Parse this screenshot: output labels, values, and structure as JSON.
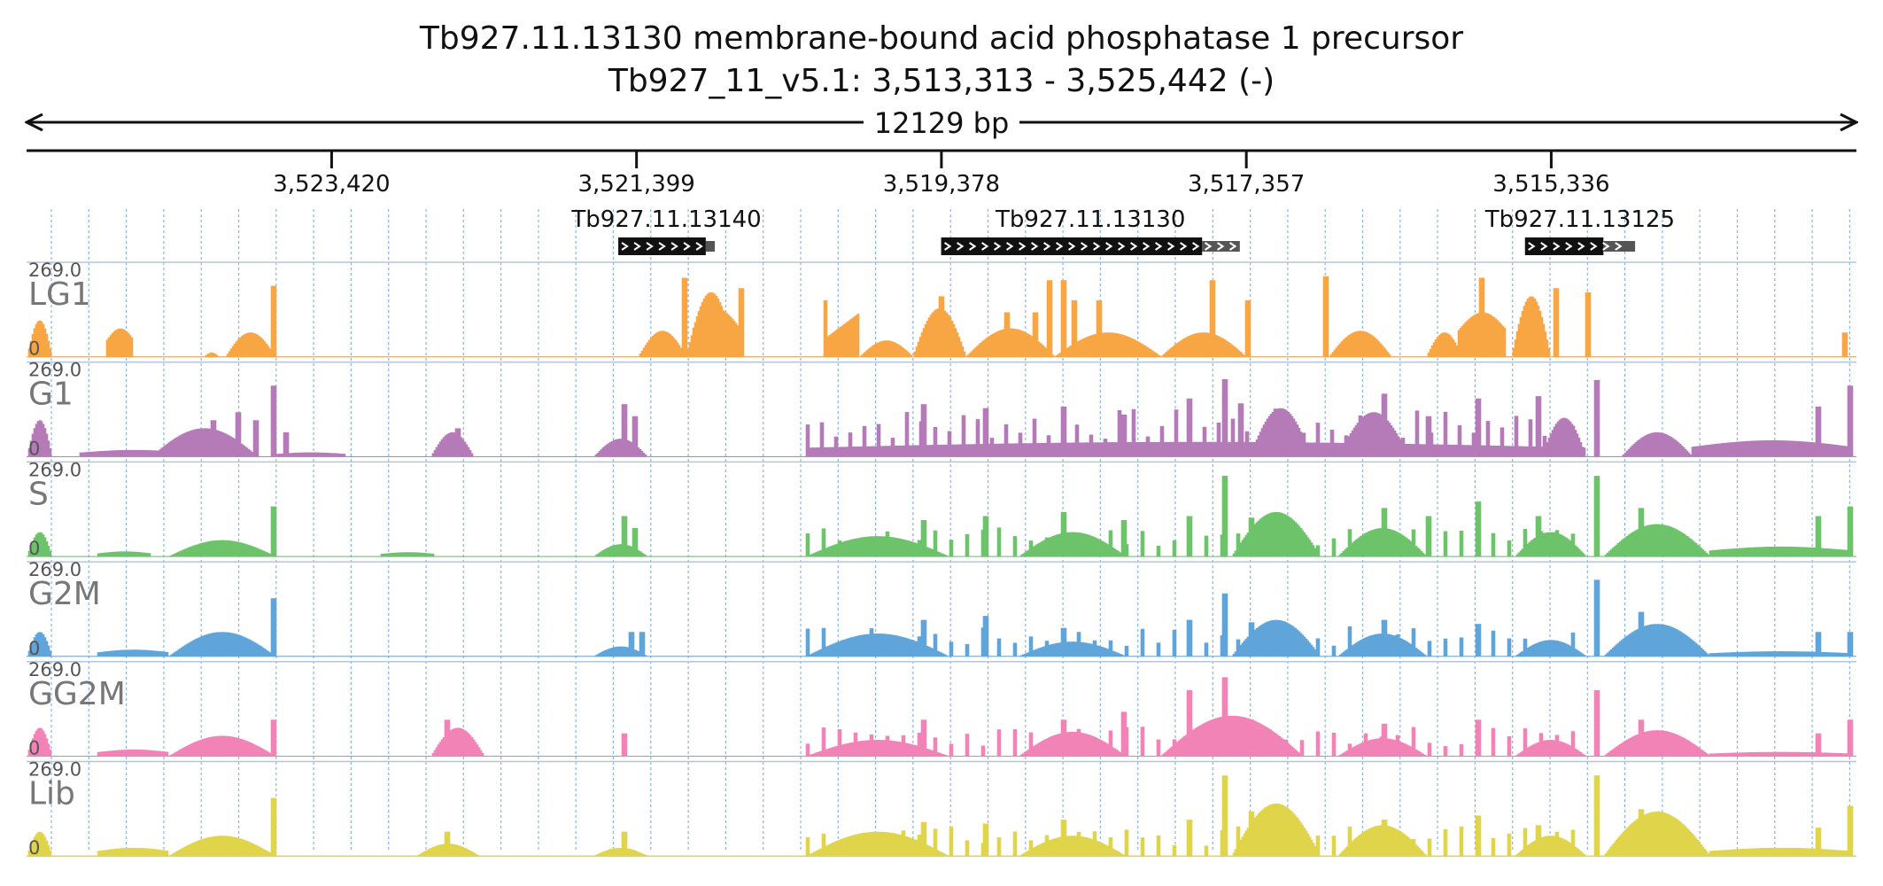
{
  "header": {
    "title": "Tb927.11.13130  membrane-bound acid phosphatase 1 precursor",
    "location": "Tb927_11_v5.1: 3,513,313 - 3,525,442 (-)"
  },
  "span": {
    "label": "12129 bp"
  },
  "ruler": {
    "start": 3525442,
    "end": 3513313,
    "strand": "-",
    "ticks": [
      {
        "value": 3523420,
        "label": "3,523,420"
      },
      {
        "value": 3521399,
        "label": "3,521,399"
      },
      {
        "value": 3519378,
        "label": "3,519,378"
      },
      {
        "value": 3517357,
        "label": "3,517,357"
      },
      {
        "value": 3515336,
        "label": "3,515,336"
      }
    ]
  },
  "genes": [
    {
      "id": "Tb927.11.13140",
      "start": 3520940,
      "end": 3521520,
      "cds_end": 3520880
    },
    {
      "id": "Tb927.11.13130",
      "start": 3517650,
      "end": 3519380,
      "cds_end": 3517400
    },
    {
      "id": "Tb927.11.13125",
      "start": 3514990,
      "end": 3515510,
      "cds_end": 3514780
    }
  ],
  "tracks": [
    {
      "name": "LG1",
      "max": "269.0",
      "zero": "0",
      "color": "#f7a643",
      "profile": "lg1"
    },
    {
      "name": "G1",
      "max": "269.0",
      "zero": "0",
      "color": "#b57ab8",
      "profile": "g1"
    },
    {
      "name": "S",
      "max": "269.0",
      "zero": "0",
      "color": "#6cc36a",
      "profile": "s"
    },
    {
      "name": "G2M",
      "max": "269.0",
      "zero": "0",
      "color": "#5fa5d9",
      "profile": "g2m"
    },
    {
      "name": "GG2M",
      "max": "269.0",
      "zero": "0",
      "color": "#f283b6",
      "profile": "gg2m"
    },
    {
      "name": "Lib",
      "max": "269.0",
      "zero": "0",
      "color": "#e0d44a",
      "profile": "lib"
    }
  ]
}
